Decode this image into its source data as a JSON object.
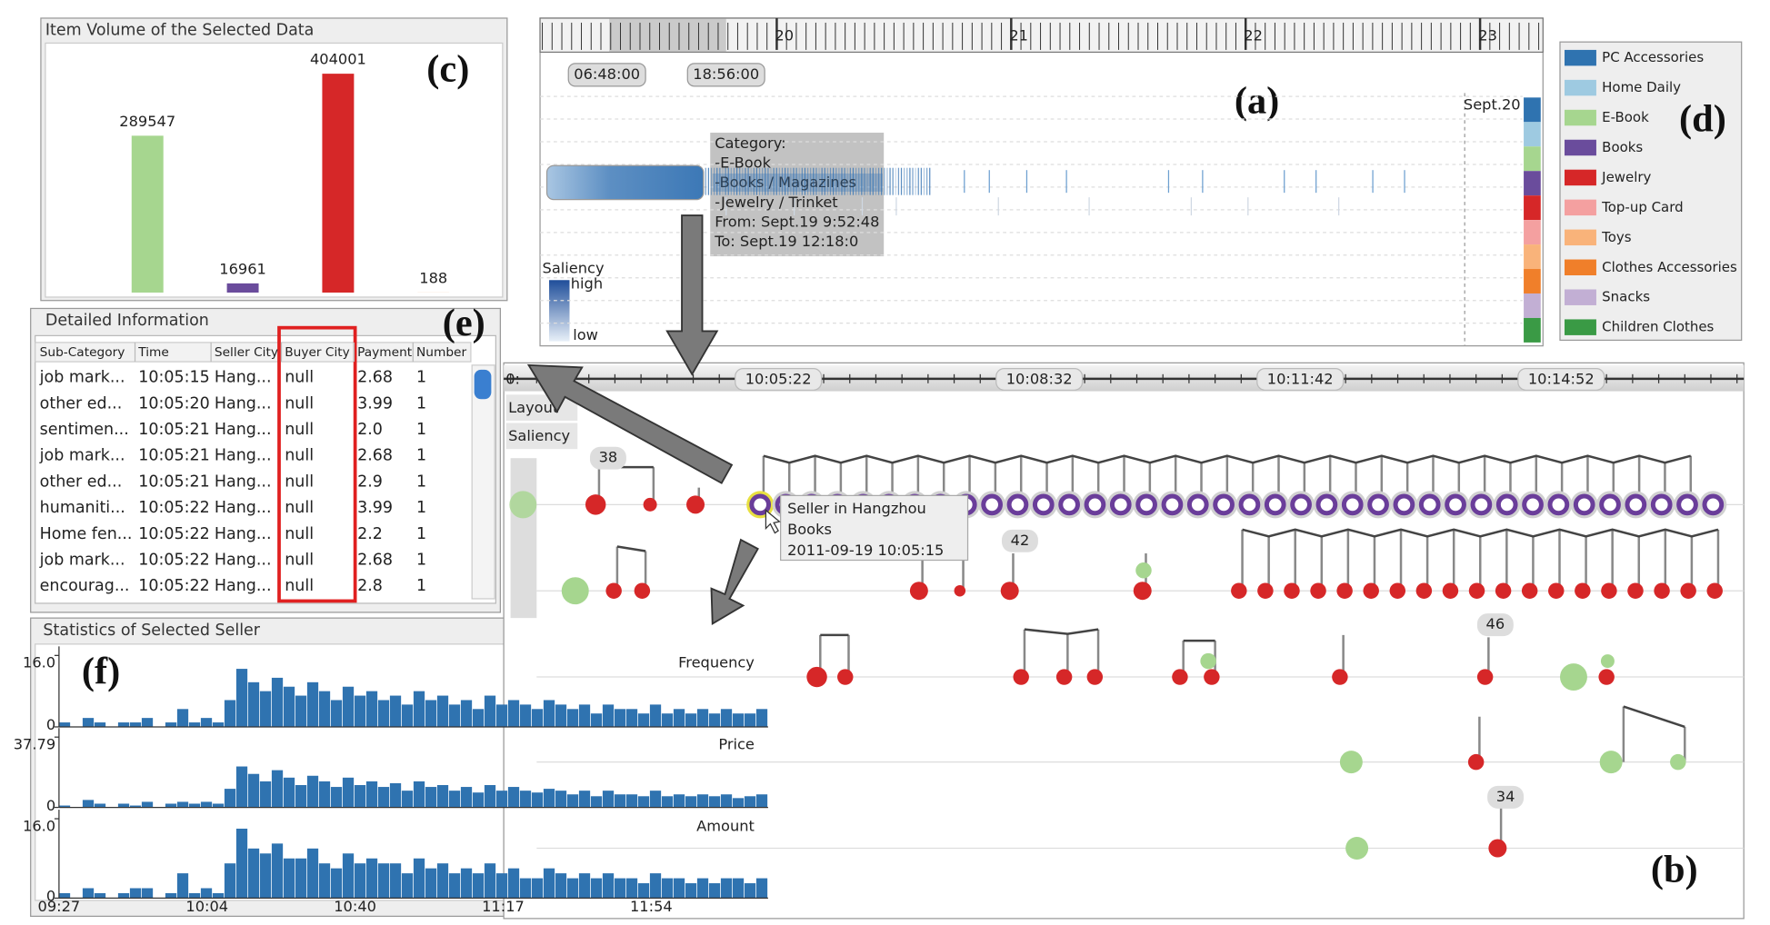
{
  "chart_data": [
    {
      "type": "bar",
      "title": "Item Volume of the Selected Data",
      "categories": [
        null,
        null,
        null,
        null
      ],
      "values": [
        289547,
        16961,
        404001,
        188
      ],
      "colors": [
        "#a6d68f",
        "#6a4c9c",
        "#d62728",
        "#f9b37a"
      ]
    },
    {
      "type": "histogram",
      "title": "Frequency",
      "color": "#2f73b0",
      "ylim": [
        0,
        16
      ],
      "yticks": [
        0,
        {
          "value": 16,
          "label": "16.0"
        }
      ],
      "values": [
        1,
        0,
        2,
        1,
        0,
        1,
        1,
        2,
        0,
        1,
        4,
        1,
        2,
        1,
        6,
        13,
        10,
        8,
        11,
        9,
        7,
        10,
        8,
        6,
        9,
        7,
        8,
        6,
        7,
        5,
        8,
        6,
        7,
        5,
        6,
        4,
        7,
        5,
        6,
        5,
        4,
        6,
        5,
        4,
        5,
        3,
        5,
        4,
        4,
        3,
        5,
        3,
        4,
        3,
        4,
        3,
        4,
        3,
        3,
        4
      ]
    },
    {
      "type": "histogram",
      "title": "Price",
      "color": "#2f73b0",
      "ylim": [
        0,
        37.79
      ],
      "yticks": [
        0,
        37.79
      ],
      "values": [
        1,
        0,
        4,
        2,
        0,
        2,
        1,
        3,
        0,
        2,
        3,
        2,
        3,
        2,
        10,
        22,
        18,
        14,
        20,
        16,
        12,
        17,
        14,
        11,
        16,
        12,
        14,
        11,
        13,
        9,
        14,
        11,
        12,
        9,
        11,
        8,
        12,
        9,
        11,
        9,
        8,
        10,
        9,
        7,
        9,
        6,
        9,
        7,
        7,
        6,
        9,
        6,
        7,
        6,
        7,
        6,
        7,
        5,
        6,
        7
      ]
    },
    {
      "type": "histogram",
      "title": "Amount",
      "color": "#2f73b0",
      "ylim": [
        0,
        16
      ],
      "yticks": [
        0,
        {
          "value": 16,
          "label": "16.0"
        }
      ],
      "values": [
        1,
        0,
        2,
        1,
        0,
        1,
        2,
        2,
        0,
        1,
        5,
        1,
        2,
        1,
        7,
        14,
        10,
        9,
        11,
        8,
        8,
        10,
        7,
        6,
        9,
        7,
        8,
        7,
        7,
        5,
        8,
        6,
        7,
        5,
        6,
        5,
        7,
        5,
        6,
        4,
        4,
        6,
        5,
        4,
        5,
        4,
        5,
        4,
        4,
        3,
        5,
        4,
        4,
        3,
        4,
        3,
        4,
        4,
        3,
        4
      ]
    }
  ],
  "panel_c": {
    "label": "(c)"
  },
  "panel_a": {
    "label": "(a)",
    "day_ticks": [
      "20",
      "21",
      "22",
      "23"
    ],
    "range_start": "06:48:00",
    "range_end": "18:56:00",
    "marker": "Sept.20",
    "tooltip": [
      "Category:",
      "-E-Book",
      "-Books / Magazines",
      "-Jewelry / Trinket",
      "From: Sept.19 9:52:48",
      "To: Sept.19 12:18:0"
    ],
    "saliency": {
      "title": "Saliency",
      "high": "high",
      "low": "low"
    }
  },
  "panel_d": {
    "label": "(d)",
    "items": [
      {
        "name": "PC Accessories",
        "color": "#2f73b0"
      },
      {
        "name": "Home Daily",
        "color": "#9ecae1"
      },
      {
        "name": "E-Book",
        "color": "#a6d68f"
      },
      {
        "name": "Books",
        "color": "#6a4c9c"
      },
      {
        "name": "Jewelry",
        "color": "#d62728"
      },
      {
        "name": "Top-up Card",
        "color": "#f4a0a0"
      },
      {
        "name": "Toys",
        "color": "#f9b37a"
      },
      {
        "name": "Clothes Accessories",
        "color": "#f07f2a"
      },
      {
        "name": "Snacks",
        "color": "#c2afd4"
      },
      {
        "name": "Children Clothes",
        "color": "#3a9a45"
      }
    ]
  },
  "panel_e": {
    "title": "Detailed Information",
    "label": "(e)",
    "headers": [
      "Sub-Category",
      "Time",
      "Seller City",
      "Buyer City",
      "Payment",
      "Number"
    ],
    "rows": [
      [
        "job mark...",
        "10:05:15",
        "Hang...",
        "null",
        "2.68",
        "1"
      ],
      [
        "other ed...",
        "10:05:20",
        "Hang...",
        "null",
        "3.99",
        "1"
      ],
      [
        "sentimen...",
        "10:05:21",
        "Hang...",
        "null",
        "2.0",
        "1"
      ],
      [
        "job mark...",
        "10:05:21",
        "Hang...",
        "null",
        "2.68",
        "1"
      ],
      [
        "other ed...",
        "10:05:21",
        "Hang...",
        "null",
        "2.9",
        "1"
      ],
      [
        "humaniti...",
        "10:05:22",
        "Hang...",
        "null",
        "3.99",
        "1"
      ],
      [
        "Home fen...",
        "10:05:22",
        "Hang...",
        "null",
        "2.2",
        "1"
      ],
      [
        "job mark...",
        "10:05:22",
        "Hang...",
        "null",
        "2.68",
        "1"
      ],
      [
        "encourag...",
        "10:05:22",
        "Hang...",
        "null",
        "2.8",
        "1"
      ]
    ]
  },
  "panel_f": {
    "title": "Statistics of Selected Seller",
    "label": "(f)",
    "time_axis": [
      "09:27",
      "10:04",
      "10:40",
      "11:17",
      "11:54"
    ]
  },
  "panel_b": {
    "label": "(b)",
    "axis_labels": [
      "0:",
      "10:05:22",
      "10:08:32",
      "10:11:42",
      "10:14:52"
    ],
    "buttons": [
      "Layout",
      "Saliency"
    ],
    "tooltip": [
      "Seller in Hangzhou",
      "Books",
      "2011-09-19 10:05:15"
    ],
    "badges": [
      38,
      42,
      46,
      34
    ]
  }
}
